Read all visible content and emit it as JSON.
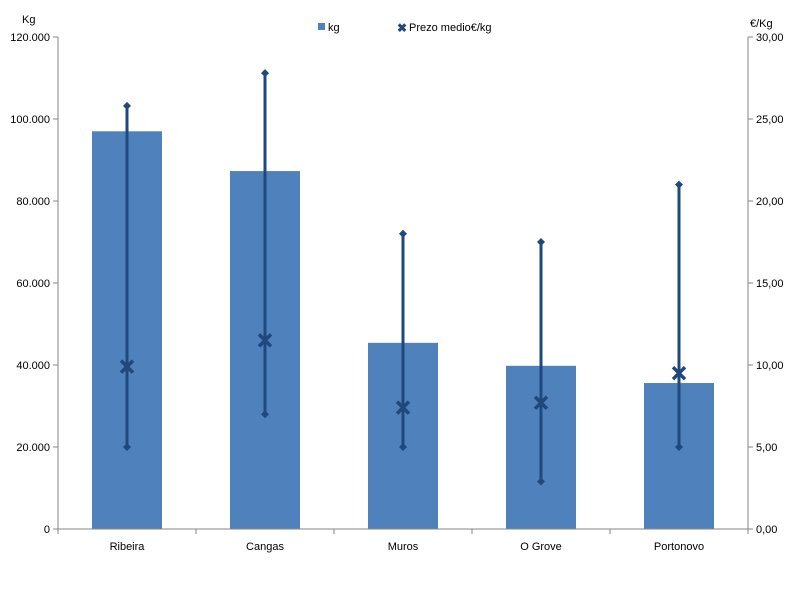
{
  "chart_data": {
    "type": "bar",
    "categories": [
      "Ribeira",
      "Cangas",
      "Muros",
      "O Grove",
      "Portonovo"
    ],
    "series": [
      {
        "name": "kg",
        "type": "bar",
        "axis": "left",
        "color": "#4F81BD",
        "values": [
          97000,
          87300,
          45400,
          39800,
          35600
        ]
      },
      {
        "name": "Prezo medio€/kg",
        "type": "high-low-mean",
        "axis": "right",
        "color": "#1F497D",
        "mean": [
          9.9,
          11.5,
          7.4,
          7.7,
          9.5
        ],
        "high": [
          25.8,
          27.8,
          18.0,
          17.5,
          21.0
        ],
        "low": [
          5.0,
          7.0,
          5.0,
          2.9,
          5.0
        ]
      }
    ],
    "ylabel": "Kg",
    "y2label": "€/Kg",
    "ylim": [
      0,
      120000
    ],
    "y2lim": [
      0,
      30
    ],
    "yticks": [
      "0",
      "20.000",
      "40.000",
      "60.000",
      "80.000",
      "100.000",
      "120.000"
    ],
    "y2ticks": [
      "0,00",
      "5,00",
      "10,00",
      "15,00",
      "20,00",
      "25,00",
      "30,00"
    ],
    "legend": {
      "position": "top",
      "entries": [
        "kg",
        "Prezo medio€/kg"
      ]
    },
    "grid": false
  }
}
